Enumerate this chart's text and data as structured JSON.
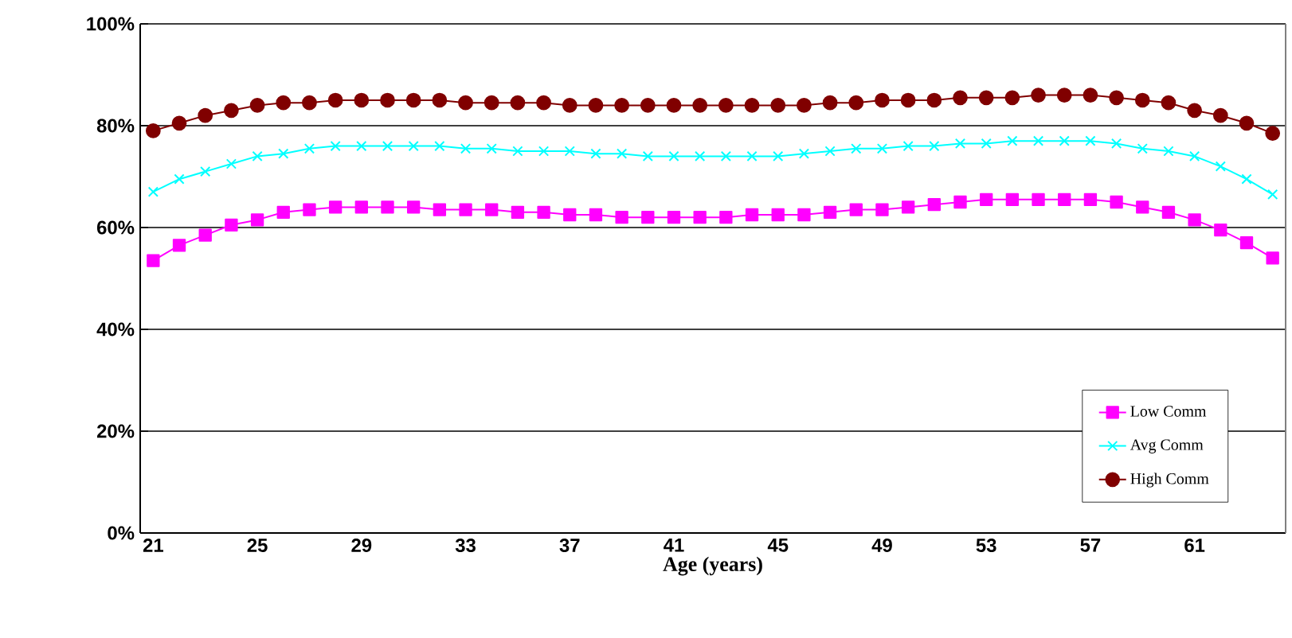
{
  "chart_data": {
    "type": "line",
    "xlabel": "Age (years)",
    "categories": [
      "21",
      null,
      null,
      null,
      "25",
      null,
      null,
      null,
      "29",
      null,
      null,
      null,
      "33",
      null,
      null,
      null,
      "37",
      null,
      null,
      null,
      "41",
      null,
      null,
      null,
      "45",
      null,
      null,
      null,
      "49",
      null,
      null,
      null,
      "53",
      null,
      null,
      null,
      "57",
      null,
      null,
      null,
      "61",
      null,
      null,
      null
    ],
    "ylim": [
      0,
      100
    ],
    "yticks": [
      {
        "value": 0,
        "label": "0%"
      },
      {
        "value": 20,
        "label": "20%"
      },
      {
        "value": 40,
        "label": "40%"
      },
      {
        "value": 60,
        "label": "60%"
      },
      {
        "value": 80,
        "label": "80%"
      },
      {
        "value": 100,
        "label": "100%"
      }
    ],
    "grid": "y",
    "legend": "bottom right",
    "series": [
      {
        "name": "Low Comm",
        "color": "#ff00ff",
        "marker": "square",
        "values": [
          53.5,
          56.5,
          58.5,
          60.5,
          61.5,
          63,
          63.5,
          64,
          64,
          64,
          64,
          63.5,
          63.5,
          63.5,
          63,
          63,
          62.5,
          62.5,
          62,
          62,
          62,
          62,
          62,
          62.5,
          62.5,
          62.5,
          63,
          63.5,
          63.5,
          64,
          64.5,
          65,
          65.5,
          65.5,
          65.5,
          65.5,
          65.5,
          65,
          64,
          63,
          61.5,
          59.5,
          57,
          54
        ]
      },
      {
        "name": "Avg Comm",
        "color": "#00ffff",
        "marker": "cross",
        "values": [
          67,
          69.5,
          71,
          72.5,
          74,
          74.5,
          75.5,
          76,
          76,
          76,
          76,
          76,
          75.5,
          75.5,
          75,
          75,
          75,
          74.5,
          74.5,
          74,
          74,
          74,
          74,
          74,
          74,
          74.5,
          75,
          75.5,
          75.5,
          76,
          76,
          76.5,
          76.5,
          77,
          77,
          77,
          77,
          76.5,
          75.5,
          75,
          74,
          72,
          69.5,
          66.5
        ]
      },
      {
        "name": "High Comm",
        "color": "#800000",
        "marker": "circle",
        "values": [
          79,
          80.5,
          82,
          83,
          84,
          84.5,
          84.5,
          85,
          85,
          85,
          85,
          85,
          84.5,
          84.5,
          84.5,
          84.5,
          84,
          84,
          84,
          84,
          84,
          84,
          84,
          84,
          84,
          84,
          84.5,
          84.5,
          85,
          85,
          85,
          85.5,
          85.5,
          85.5,
          86,
          86,
          86,
          85.5,
          85,
          84.5,
          83,
          82,
          80.5,
          78.5
        ]
      }
    ]
  }
}
